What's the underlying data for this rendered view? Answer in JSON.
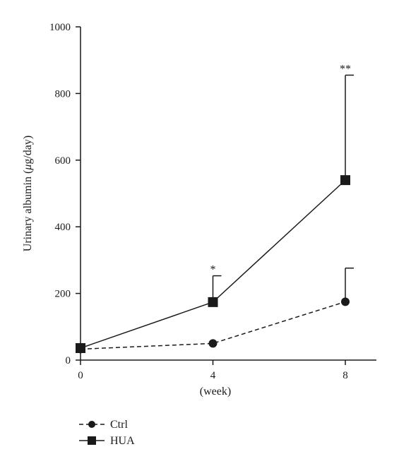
{
  "chart_data": {
    "type": "line",
    "title": "",
    "xlabel": "(week)",
    "ylabel": "Urinary albumin (μg/day)",
    "ylabel_parts": {
      "pre": "Urinary albumin (",
      "unit_italic": "μ",
      "post": "g/day)"
    },
    "x": [
      0,
      4,
      8
    ],
    "x_tick_labels": [
      "0",
      "4",
      "8"
    ],
    "xlim": [
      0,
      8
    ],
    "ylim": [
      0,
      1000
    ],
    "y_ticks": [
      0,
      200,
      400,
      600,
      800,
      1000
    ],
    "y_tick_labels": [
      "0",
      "200",
      "400",
      "600",
      "800",
      "1000"
    ],
    "grid": false,
    "legend_position": "bottom-left",
    "series": [
      {
        "name": "Ctrl",
        "line_style": "dashed",
        "marker": "circle",
        "values": [
          33,
          50,
          175
        ],
        "error_upper": [
          33,
          50,
          276
        ]
      },
      {
        "name": "HUA",
        "line_style": "solid",
        "marker": "square",
        "values": [
          36,
          174,
          540
        ],
        "error_upper": [
          36,
          253,
          855
        ]
      }
    ],
    "annotations": [
      {
        "text": "*",
        "x": 4,
        "series": "HUA"
      },
      {
        "text": "**",
        "x": 8,
        "series": "HUA"
      }
    ]
  }
}
